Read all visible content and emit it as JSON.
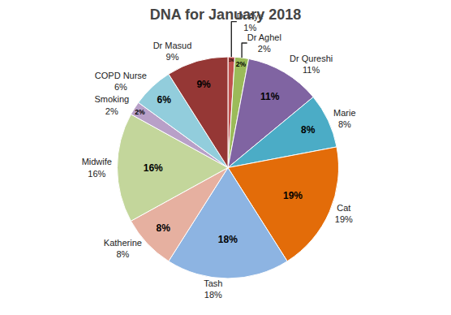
{
  "chart_data": {
    "type": "pie",
    "title": "DNA for January 2018",
    "categories": [
      "Dr Aye",
      "Dr Aghel",
      "Dr Qureshi",
      "Marie",
      "Cat",
      "Tash",
      "Katherine",
      "Midwife",
      "Smoking",
      "COPD Nurse",
      "Dr Masud"
    ],
    "values": [
      1,
      2,
      11,
      8,
      19,
      18,
      8,
      16,
      2,
      6,
      9
    ],
    "value_labels": [
      "1%",
      "2%",
      "11%",
      "8%",
      "19%",
      "18%",
      "8%",
      "16%",
      "2%",
      "6%",
      "9%"
    ],
    "colors": [
      "#c0504d",
      "#9bbb59",
      "#8064a2",
      "#4bacc6",
      "#e36c09",
      "#8db4e2",
      "#e6b0a0",
      "#c3d69b",
      "#b8a0c8",
      "#92cddc",
      "#953735"
    ],
    "data_labels": true
  }
}
